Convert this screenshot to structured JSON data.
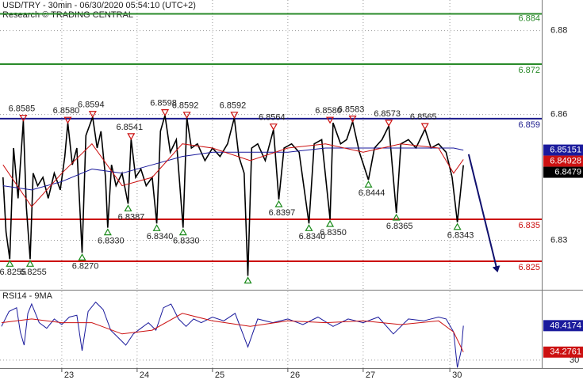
{
  "chart_data": [
    {
      "type": "line",
      "title": "USD/TRY - 30min - 06/30/2020 05:54:10 (UTC+2)",
      "subtitle": "Research © TRADING CENTRAL",
      "xlim": [
        0.18,
        7.37
      ],
      "xticks": [
        {
          "value": 1,
          "label": "23"
        },
        {
          "value": 2,
          "label": "24"
        },
        {
          "value": 3,
          "label": "25"
        },
        {
          "value": 4,
          "label": "26"
        },
        {
          "value": 5,
          "label": "27"
        },
        {
          "value": 6.15,
          "label": "30"
        }
      ],
      "ylim": [
        6.8182,
        6.8873
      ],
      "yticks": [
        6.83,
        6.86,
        6.88
      ],
      "grid": true,
      "series": [
        {
          "color": "#000000",
          "x": [
            0.22,
            0.26,
            0.31,
            0.36,
            0.42,
            0.49,
            0.53,
            0.58,
            0.62,
            0.68,
            0.75,
            0.82,
            0.9,
            0.98,
            1.04,
            1.08,
            1.14,
            1.2,
            1.27,
            1.32,
            1.41,
            1.47,
            1.52,
            1.58,
            1.61,
            1.66,
            1.72,
            1.8,
            1.88,
            1.92,
            1.98,
            2.05,
            2.12,
            2.2,
            2.26,
            2.31,
            2.37,
            2.44,
            2.52,
            2.61,
            2.66,
            2.72,
            2.8,
            2.9,
            3.0,
            3.1,
            3.2,
            3.29,
            3.35,
            3.42,
            3.47,
            3.52,
            3.6,
            3.7,
            3.81,
            3.88,
            3.95,
            4.05,
            4.15,
            4.28,
            4.35,
            4.45,
            4.56,
            4.6,
            4.7,
            4.78,
            4.86,
            4.95,
            5.07,
            5.15,
            5.25,
            5.34,
            5.44,
            5.5,
            5.6,
            5.7,
            5.82,
            5.9,
            6.0,
            6.1,
            6.18,
            6.25,
            6.3,
            6.33
          ],
          "values": [
            6.845,
            6.832,
            6.8255,
            6.852,
            6.84,
            6.8585,
            6.838,
            6.8255,
            6.846,
            6.843,
            6.845,
            6.84,
            6.846,
            6.842,
            6.85,
            6.858,
            6.848,
            6.852,
            6.827,
            6.855,
            6.8594,
            6.852,
            6.856,
            6.845,
            6.833,
            6.848,
            6.843,
            6.846,
            6.8387,
            6.8541,
            6.845,
            6.847,
            6.843,
            6.845,
            6.834,
            6.856,
            6.8598,
            6.851,
            6.854,
            6.833,
            6.8592,
            6.852,
            6.853,
            6.849,
            6.852,
            6.85,
            6.853,
            6.8592,
            6.85,
            6.846,
            6.8215,
            6.852,
            6.853,
            6.849,
            6.8564,
            6.8397,
            6.852,
            6.853,
            6.851,
            6.834,
            6.853,
            6.854,
            6.835,
            6.858,
            6.853,
            6.854,
            6.8583,
            6.851,
            6.8444,
            6.852,
            6.854,
            6.8573,
            6.8365,
            6.853,
            6.854,
            6.852,
            6.8565,
            6.852,
            6.853,
            6.851,
            6.845,
            6.8343,
            6.843,
            6.8479
          ]
        },
        {
          "color": "#1a1a9c",
          "x": [
            0.22,
            0.6,
            1.0,
            1.4,
            1.8,
            2.2,
            2.6,
            3.0,
            3.5,
            4.0,
            4.5,
            5.0,
            5.5,
            6.0,
            6.2,
            6.33
          ],
          "values": [
            6.843,
            6.842,
            6.844,
            6.847,
            6.846,
            6.848,
            6.85,
            6.851,
            6.851,
            6.851,
            6.852,
            6.852,
            6.852,
            6.852,
            6.852,
            6.85151
          ]
        },
        {
          "color": "#cc1111",
          "x": [
            0.22,
            0.6,
            1.0,
            1.4,
            1.8,
            2.2,
            2.6,
            3.0,
            3.5,
            4.0,
            4.5,
            5.0,
            5.5,
            6.0,
            6.2,
            6.33
          ],
          "values": [
            6.848,
            6.838,
            6.846,
            6.853,
            6.843,
            6.845,
            6.853,
            6.852,
            6.849,
            6.852,
            6.853,
            6.851,
            6.853,
            6.852,
            6.846,
            6.84928
          ]
        }
      ],
      "levels": [
        {
          "value": 6.884,
          "color": "#2a8a2a"
        },
        {
          "value": 6.872,
          "color": "#2a8a2a"
        },
        {
          "value": 6.859,
          "color": "#1a1a8c"
        },
        {
          "value": 6.835,
          "color": "#cc1111"
        },
        {
          "value": 6.825,
          "color": "#cc1111"
        }
      ],
      "highs": {
        "color": "#cc1111",
        "x": [
          0.49,
          1.08,
          1.41,
          1.92,
          2.37,
          2.66,
          3.29,
          3.81,
          4.56,
          4.86,
          5.34,
          5.82
        ],
        "values": [
          6.8585,
          6.858,
          6.8594,
          6.8541,
          6.8598,
          6.8592,
          6.8592,
          6.8564,
          6.858,
          6.8583,
          6.8573,
          6.8565
        ],
        "value_labels": [
          "6.8585",
          "6.8580",
          "6.8594",
          "6.8541",
          "6.8598",
          "6.8592",
          "6.8592",
          "6.8564",
          "6.8580",
          "6.8583",
          "6.8573",
          "6.8565"
        ]
      },
      "lows": {
        "color": "#1a8a1a",
        "x": [
          0.31,
          0.58,
          1.27,
          1.61,
          1.88,
          2.26,
          2.61,
          3.47,
          3.88,
          4.28,
          4.56,
          5.07,
          5.44,
          6.25
        ],
        "values": [
          6.8255,
          6.8255,
          6.827,
          6.833,
          6.8387,
          6.834,
          6.833,
          6.8215,
          6.8397,
          6.834,
          6.835,
          6.8444,
          6.8365,
          6.8343
        ],
        "value_labels": [
          "6.8255",
          "6.8255",
          "6.8270",
          "6.8330",
          "6.8387",
          "6.8340",
          "6.8330",
          null,
          "6.8397",
          "6.8340",
          "6.8350",
          "6.8444",
          "6.8365",
          "6.8343"
        ]
      },
      "forecast": {
        "color": "#10106e",
        "x": [
          6.4,
          6.78
        ],
        "values": [
          6.8505,
          6.8227
        ]
      }
    },
    {
      "type": "line",
      "title": "RSI14 - 9MA",
      "ylim": [
        25.7,
        67.2
      ],
      "yticks": [
        30
      ],
      "grid": true,
      "series": [
        {
          "color": "#1a1a9c",
          "x": [
            0.2,
            0.3,
            0.4,
            0.45,
            0.5,
            0.55,
            0.6,
            0.7,
            0.8,
            0.9,
            1.0,
            1.1,
            1.2,
            1.27,
            1.35,
            1.45,
            1.55,
            1.65,
            1.75,
            1.85,
            1.95,
            2.05,
            2.15,
            2.25,
            2.35,
            2.45,
            2.55,
            2.65,
            2.75,
            2.85,
            3.0,
            3.15,
            3.3,
            3.47,
            3.6,
            3.8,
            4.0,
            4.2,
            4.4,
            4.6,
            4.8,
            5.0,
            5.2,
            5.4,
            5.6,
            5.8,
            6.0,
            6.1,
            6.2,
            6.25,
            6.3,
            6.33
          ],
          "values": [
            48,
            56,
            58,
            45,
            38,
            55,
            60,
            50,
            47,
            52,
            49,
            53,
            54,
            35,
            56,
            61,
            57,
            46,
            42,
            38,
            44,
            47,
            50,
            46,
            58,
            60,
            52,
            48,
            52,
            50,
            53,
            51,
            55,
            37,
            52,
            50,
            52,
            49,
            53,
            48,
            52,
            50,
            53,
            44,
            52,
            51,
            53,
            52,
            45,
            26,
            35,
            48.4174
          ]
        },
        {
          "color": "#cc1111",
          "x": [
            0.2,
            0.6,
            1.0,
            1.4,
            1.8,
            2.2,
            2.6,
            3.0,
            3.5,
            4.0,
            4.5,
            5.0,
            5.5,
            6.0,
            6.2,
            6.33
          ],
          "values": [
            50,
            52,
            50,
            50,
            44,
            46,
            55,
            51,
            48,
            51,
            50,
            51,
            49,
            51,
            45,
            34.2761
          ]
        }
      ]
    }
  ]
}
